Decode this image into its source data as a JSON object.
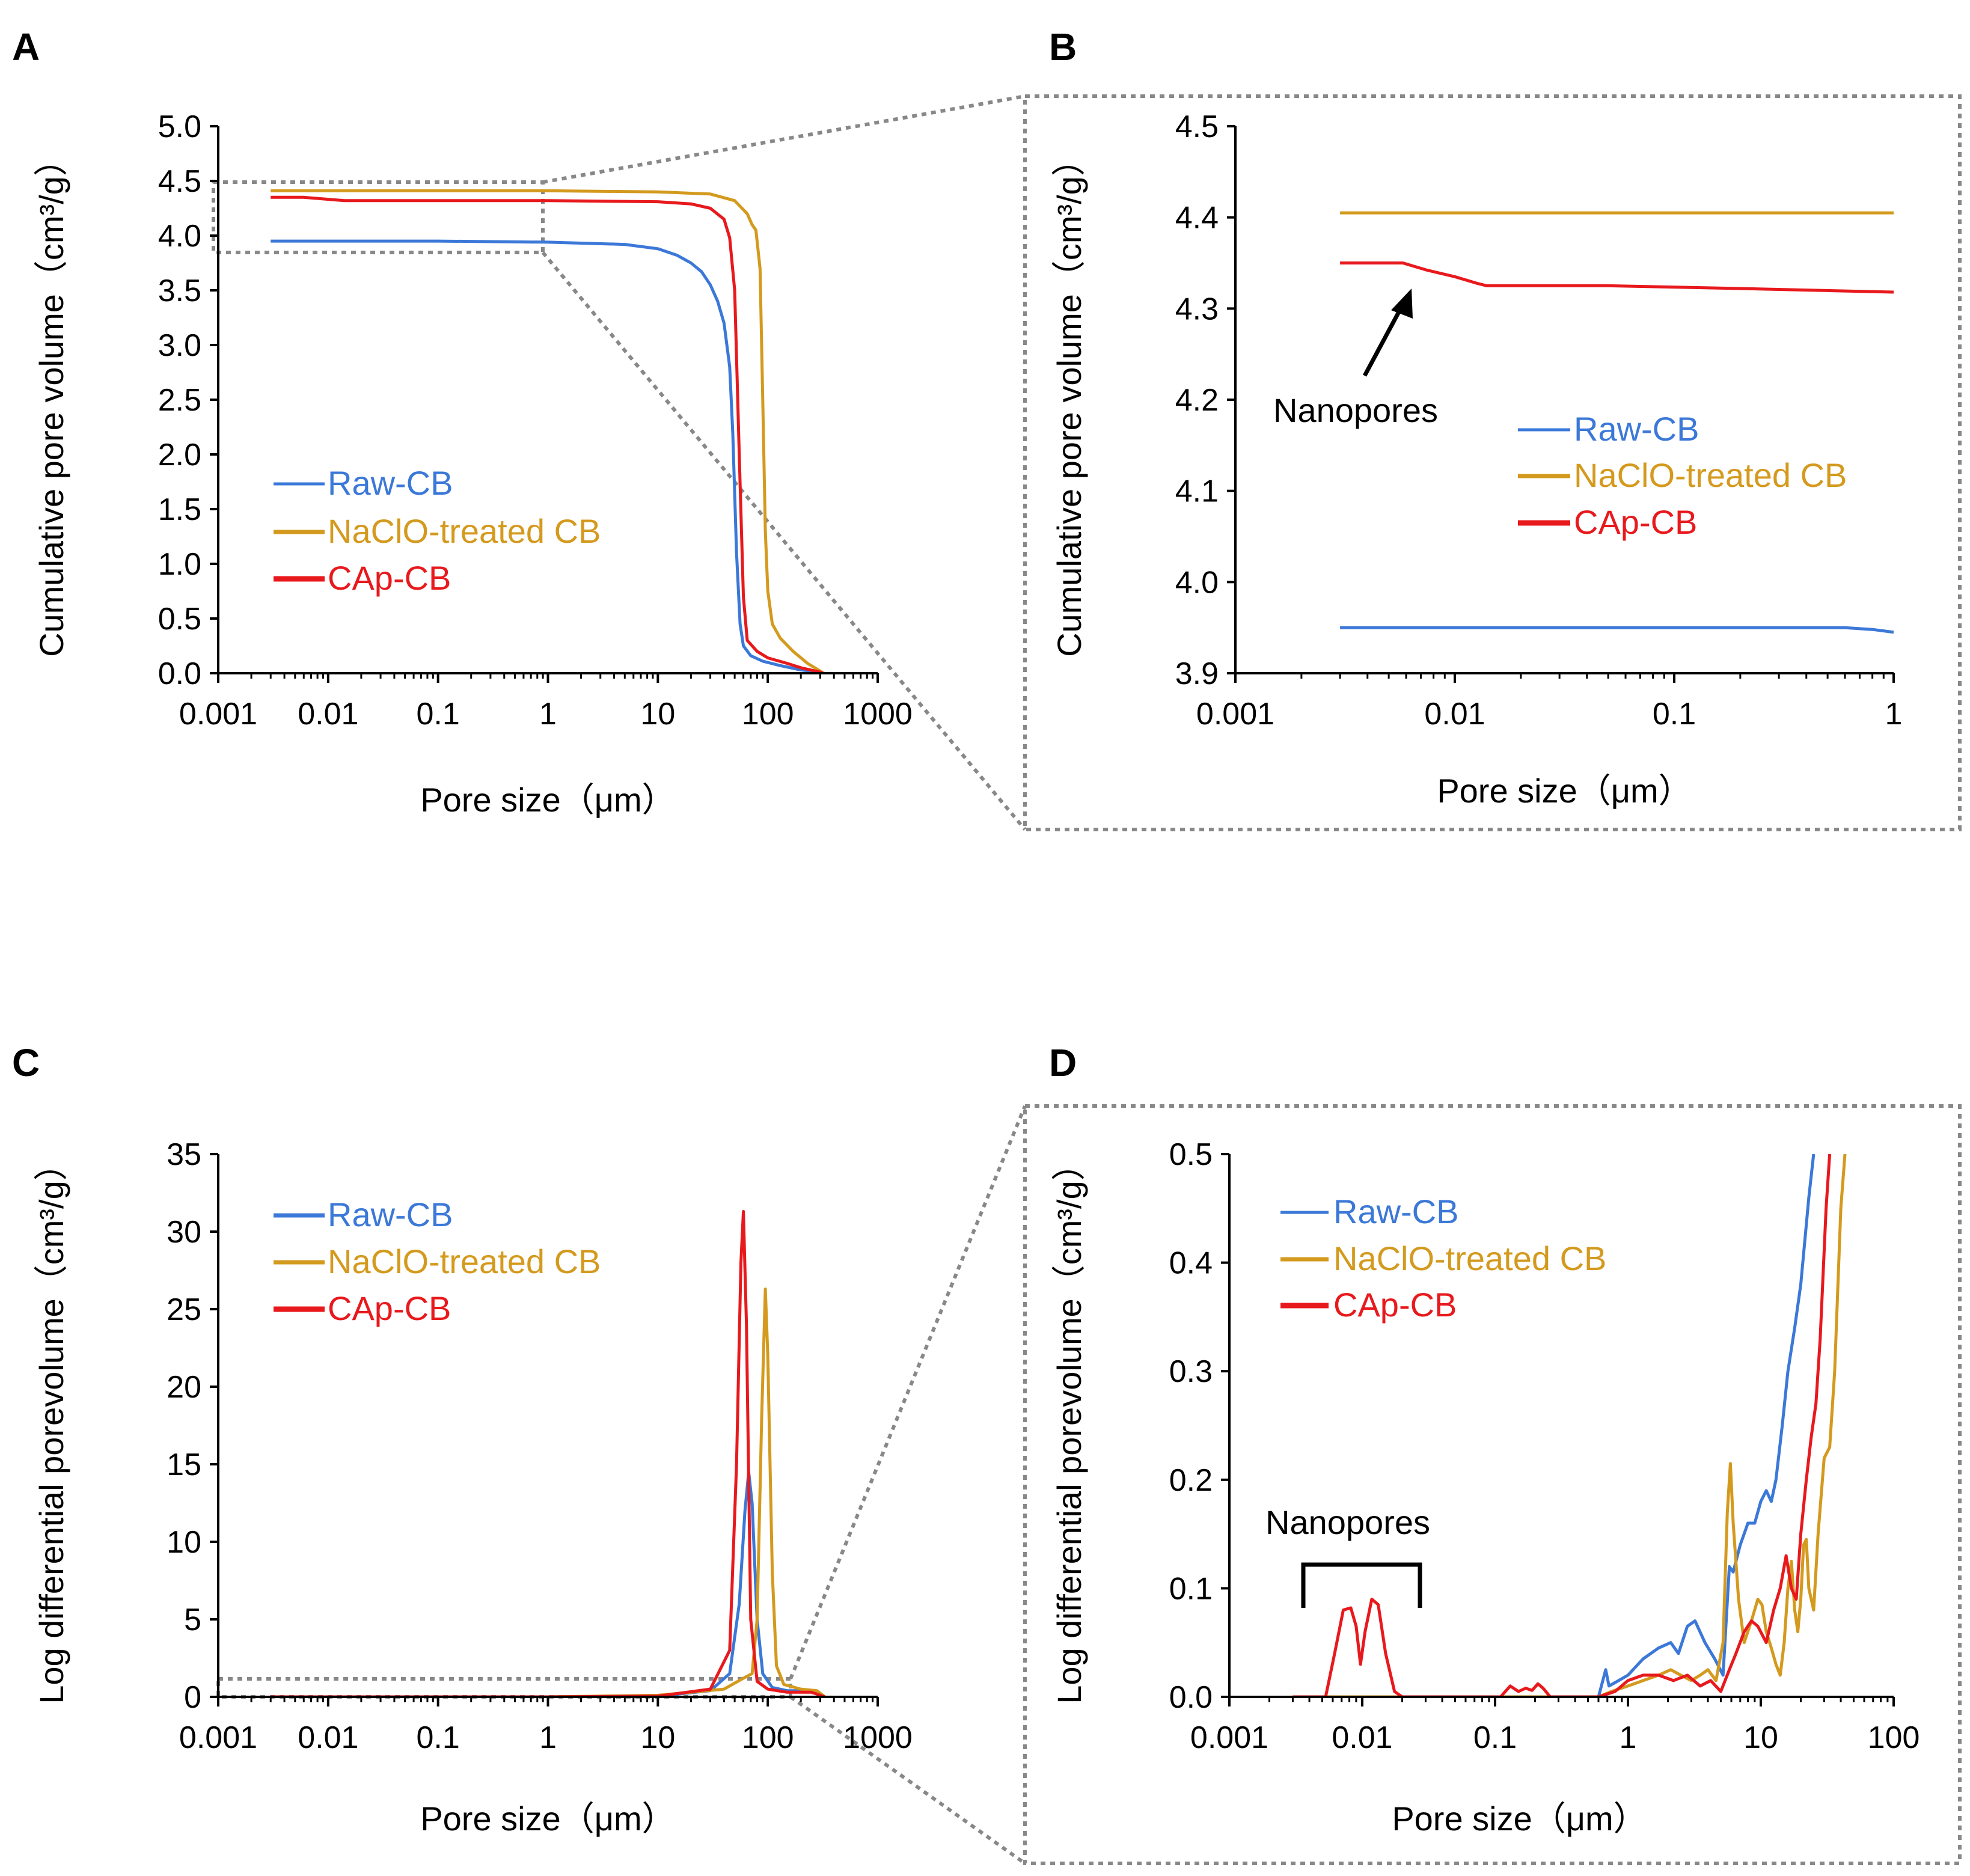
{
  "figure": {
    "colors": {
      "raw": "#3b78d8",
      "naclo": "#d49a1e",
      "cap": "#e8191d",
      "zoom_box": "#888888"
    }
  },
  "chart_data": [
    {
      "panel": "A",
      "type": "line",
      "xscale": "log",
      "xlim": [
        0.001,
        1000
      ],
      "ylim": [
        0,
        5
      ],
      "xlabel": "Pore size（μm）",
      "ylabel": "Cumulative pore volume（cm³/g）",
      "xticks": [
        0.001,
        0.01,
        0.1,
        1,
        10,
        100,
        1000
      ],
      "xtick_labels": [
        "0.001",
        "0.01",
        "0.1",
        "1",
        "10",
        "100",
        "1000"
      ],
      "yticks": [
        0,
        0.5,
        1,
        1.5,
        2,
        2.5,
        3,
        3.5,
        4,
        4.5,
        5
      ],
      "ytick_labels": [
        "0.0",
        "0.5",
        "1.0",
        "1.5",
        "2.0",
        "2.5",
        "3.0",
        "3.5",
        "4.0",
        "4.5",
        "5.0"
      ],
      "legend": [
        "Raw-CB",
        "NaClO-treated CB",
        "CAp-CB"
      ],
      "legend_position": "middle-left",
      "series": [
        {
          "name": "Raw-CB",
          "key": "raw",
          "x": [
            0.003,
            0.1,
            1,
            5,
            10,
            15,
            20,
            25,
            30,
            35,
            40,
            45,
            48,
            52,
            56,
            60,
            70,
            90,
            130,
            200,
            300,
            320
          ],
          "y": [
            3.95,
            3.95,
            3.94,
            3.92,
            3.88,
            3.82,
            3.75,
            3.67,
            3.55,
            3.4,
            3.2,
            2.8,
            2.2,
            1.1,
            0.45,
            0.25,
            0.16,
            0.11,
            0.07,
            0.03,
            0.01,
            0
          ]
        },
        {
          "name": "NaClO-treated CB",
          "key": "naclo",
          "x": [
            0.003,
            0.1,
            1,
            10,
            30,
            50,
            65,
            72,
            78,
            85,
            90,
            95,
            100,
            110,
            130,
            170,
            230,
            300,
            320
          ],
          "y": [
            4.41,
            4.41,
            4.41,
            4.4,
            4.38,
            4.32,
            4.2,
            4.1,
            4.05,
            3.7,
            2.5,
            1.3,
            0.75,
            0.45,
            0.32,
            0.2,
            0.09,
            0.02,
            0
          ]
        },
        {
          "name": "CAp-CB",
          "key": "cap",
          "x": [
            0.003,
            0.006,
            0.014,
            1,
            10,
            20,
            30,
            40,
            45,
            50,
            55,
            60,
            65,
            80,
            100,
            150,
            200,
            300,
            320
          ],
          "y": [
            4.35,
            4.35,
            4.32,
            4.32,
            4.31,
            4.29,
            4.25,
            4.15,
            3.98,
            3.5,
            2.0,
            0.7,
            0.3,
            0.2,
            0.14,
            0.09,
            0.05,
            0.01,
            0
          ]
        }
      ]
    },
    {
      "panel": "B",
      "type": "line",
      "xscale": "log",
      "xlim": [
        0.001,
        1
      ],
      "ylim": [
        3.9,
        4.5
      ],
      "xlabel": "Pore size（μm）",
      "ylabel": "Cumulative pore volume（cm³/g）",
      "xticks": [
        0.001,
        0.01,
        0.1,
        1
      ],
      "xtick_labels": [
        "0.001",
        "0.01",
        "0.1",
        "1"
      ],
      "yticks": [
        3.9,
        4.0,
        4.1,
        4.2,
        4.3,
        4.4,
        4.5
      ],
      "ytick_labels": [
        "3.9",
        "4.0",
        "4.1",
        "4.2",
        "4.3",
        "4.4",
        "4.5"
      ],
      "legend": [
        "Raw-CB",
        "NaClO-treated CB",
        "CAp-CB"
      ],
      "legend_position": "middle-right",
      "annotation": "Nanopores",
      "series": [
        {
          "name": "Raw-CB",
          "key": "raw",
          "x": [
            0.003,
            0.1,
            0.6,
            0.8,
            1.0
          ],
          "y": [
            3.95,
            3.95,
            3.95,
            3.948,
            3.945
          ]
        },
        {
          "name": "NaClO-treated CB",
          "key": "naclo",
          "x": [
            0.003,
            0.1,
            1.0
          ],
          "y": [
            4.405,
            4.405,
            4.405
          ]
        },
        {
          "name": "CAp-CB",
          "key": "cap",
          "x": [
            0.003,
            0.0045,
            0.0058,
            0.0075,
            0.01,
            0.0125,
            0.014,
            0.05,
            0.2,
            1.0
          ],
          "y": [
            4.35,
            4.35,
            4.35,
            4.342,
            4.335,
            4.328,
            4.325,
            4.325,
            4.322,
            4.318
          ]
        }
      ]
    },
    {
      "panel": "C",
      "type": "line",
      "xscale": "log",
      "xlim": [
        0.001,
        1000
      ],
      "ylim": [
        0,
        35
      ],
      "xlabel": "Pore size（μm）",
      "ylabel": "Log differential porevolume（cm³/g）",
      "xticks": [
        0.001,
        0.01,
        0.1,
        1,
        10,
        100,
        1000
      ],
      "xtick_labels": [
        "0.001",
        "0.01",
        "0.1",
        "1",
        "10",
        "100",
        "1000"
      ],
      "yticks": [
        0,
        5,
        10,
        15,
        20,
        25,
        30,
        35
      ],
      "ytick_labels": [
        "0",
        "5",
        "10",
        "15",
        "20",
        "25",
        "30",
        "35"
      ],
      "legend": [
        "Raw-CB",
        "NaClO-treated CB",
        "CAp-CB"
      ],
      "legend_position": "top-left",
      "series": [
        {
          "name": "Raw-CB",
          "key": "raw",
          "x": [
            0.003,
            1,
            10,
            30,
            45,
            55,
            62,
            67,
            72,
            80,
            90,
            110,
            150,
            250,
            330
          ],
          "y": [
            0,
            0,
            0.05,
            0.4,
            1.5,
            6,
            12,
            14.5,
            12.5,
            5,
            1.5,
            0.6,
            0.4,
            0.4,
            0
          ]
        },
        {
          "name": "NaClO-treated CB",
          "key": "naclo",
          "x": [
            0.003,
            1,
            10,
            40,
            60,
            72,
            80,
            88,
            95,
            100,
            110,
            120,
            140,
            200,
            280,
            330
          ],
          "y": [
            0,
            0,
            0.1,
            0.5,
            1.2,
            1.5,
            5,
            18,
            26.3,
            22,
            8,
            2,
            0.8,
            0.5,
            0.4,
            0
          ]
        },
        {
          "name": "CAp-CB",
          "key": "cap",
          "x": [
            0.003,
            1,
            10,
            30,
            45,
            52,
            57,
            60,
            64,
            70,
            80,
            100,
            150,
            250,
            330
          ],
          "y": [
            0,
            0,
            0.05,
            0.5,
            3,
            15,
            28,
            31.3,
            24,
            5,
            1,
            0.5,
            0.3,
            0.3,
            0
          ]
        }
      ]
    },
    {
      "panel": "D",
      "type": "line",
      "xscale": "log",
      "xlim": [
        0.001,
        100
      ],
      "ylim": [
        0,
        0.5
      ],
      "xlabel": "Pore size（μm）",
      "ylabel": "Log differential porevolume（cm³/g）",
      "xticks": [
        0.001,
        0.01,
        0.1,
        1,
        10,
        100
      ],
      "xtick_labels": [
        "0.001",
        "0.01",
        "0.1",
        "1",
        "10",
        "100"
      ],
      "yticks": [
        0,
        0.1,
        0.2,
        0.3,
        0.4,
        0.5
      ],
      "ytick_labels": [
        "0.0",
        "0.1",
        "0.2",
        "0.3",
        "0.4",
        "0.5"
      ],
      "legend": [
        "Raw-CB",
        "NaClO-treated CB",
        "CAp-CB"
      ],
      "legend_position": "top-left",
      "annotation": "Nanopores",
      "series": [
        {
          "name": "Raw-CB",
          "key": "raw",
          "x": [
            0.003,
            0.6,
            0.68,
            0.72,
            0.85,
            1.0,
            1.3,
            1.7,
            2.1,
            2.4,
            2.8,
            3.2,
            3.8,
            4.5,
            5.2,
            5.8,
            6.2,
            7.0,
            8.0,
            9.0,
            10.0,
            11.0,
            12.0,
            13.0,
            14.5,
            16.0,
            18.0,
            20.0,
            23.0,
            25.0
          ],
          "y": [
            0,
            0,
            0.025,
            0.01,
            0.015,
            0.02,
            0.035,
            0.045,
            0.05,
            0.04,
            0.065,
            0.07,
            0.05,
            0.035,
            0.02,
            0.12,
            0.115,
            0.14,
            0.16,
            0.16,
            0.18,
            0.19,
            0.18,
            0.2,
            0.25,
            0.3,
            0.34,
            0.38,
            0.46,
            0.5
          ]
        },
        {
          "name": "NaClO-treated CB",
          "key": "naclo",
          "x": [
            0.003,
            0.6,
            0.75,
            1.0,
            1.3,
            1.7,
            2.1,
            2.5,
            3.0,
            3.5,
            4.0,
            4.6,
            5.2,
            5.6,
            5.9,
            6.2,
            6.8,
            7.5,
            8.5,
            9.5,
            10.2,
            11.0,
            12.0,
            13.0,
            14.0,
            15.0,
            16.0,
            17.0,
            18.0,
            19.0,
            20.0,
            21.0,
            22.0,
            23.0,
            25.0,
            27.0,
            30.0,
            33.0,
            36.0,
            40.0,
            43.0
          ],
          "y": [
            0,
            0,
            0.005,
            0.01,
            0.015,
            0.02,
            0.025,
            0.02,
            0.015,
            0.02,
            0.025,
            0.015,
            0.05,
            0.17,
            0.215,
            0.16,
            0.09,
            0.05,
            0.07,
            0.09,
            0.085,
            0.06,
            0.045,
            0.03,
            0.02,
            0.05,
            0.1,
            0.125,
            0.08,
            0.06,
            0.09,
            0.14,
            0.145,
            0.1,
            0.08,
            0.15,
            0.22,
            0.23,
            0.3,
            0.45,
            0.5
          ]
        },
        {
          "name": "CAp-CB",
          "key": "cap",
          "x": [
            0.003,
            0.0053,
            0.0062,
            0.0072,
            0.0082,
            0.009,
            0.0097,
            0.0105,
            0.0118,
            0.0132,
            0.015,
            0.0175,
            0.02,
            0.11,
            0.13,
            0.15,
            0.17,
            0.19,
            0.21,
            0.23,
            0.26,
            0.6,
            0.8,
            1.0,
            1.3,
            1.7,
            2.2,
            2.8,
            3.5,
            4.2,
            5.0,
            5.8,
            6.5,
            7.5,
            8.5,
            9.5,
            11.0,
            12.5,
            14.0,
            15.5,
            17.0,
            18.5,
            20.0,
            22.0,
            24.0,
            26.0,
            28.0,
            31.0,
            33.0
          ],
          "y": [
            0,
            0,
            0.04,
            0.08,
            0.082,
            0.065,
            0.03,
            0.06,
            0.09,
            0.085,
            0.04,
            0.005,
            0,
            0,
            0.01,
            0.005,
            0.008,
            0.006,
            0.012,
            0.008,
            0,
            0,
            0.005,
            0.015,
            0.02,
            0.02,
            0.015,
            0.02,
            0.01,
            0.015,
            0.005,
            0.025,
            0.04,
            0.06,
            0.07,
            0.065,
            0.05,
            0.08,
            0.1,
            0.13,
            0.1,
            0.09,
            0.15,
            0.2,
            0.24,
            0.27,
            0.33,
            0.45,
            0.5
          ]
        }
      ]
    }
  ]
}
